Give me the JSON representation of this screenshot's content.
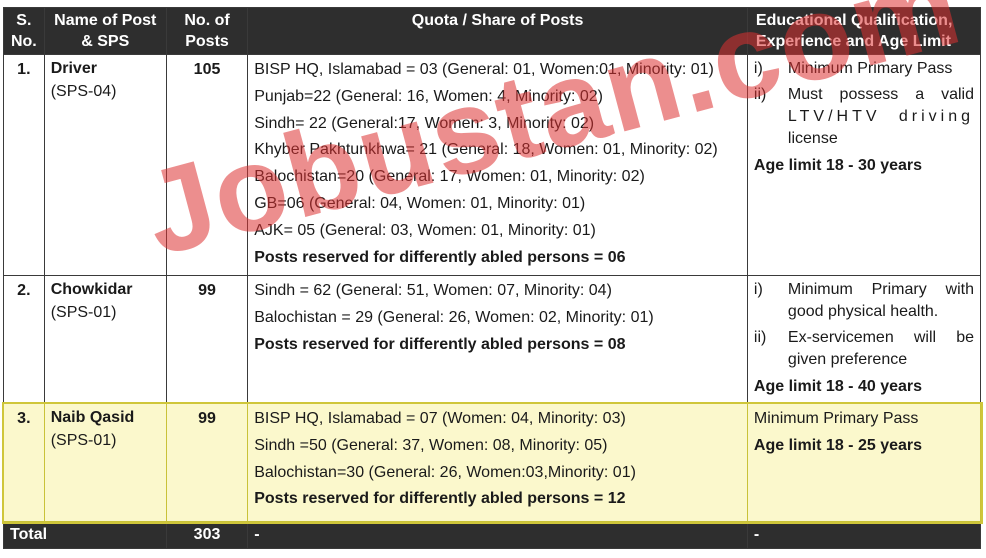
{
  "headers": {
    "sno": "S. No.",
    "name": "Name of Post & SPS",
    "posts": "No. of Posts",
    "quota": "Quota / Share of Posts",
    "qualification": "Educational Qualification, Experience and Age Limit"
  },
  "rows": [
    {
      "sno": "1.",
      "name": "Driver",
      "sps": "(SPS-04)",
      "posts": "105",
      "quota": [
        "BISP HQ, Islamabad = 03 (General: 01, Women:01, Minority: 01)",
        "Punjab=22 (General: 16, Women: 4, Minority: 02)",
        "Sindh= 22 (General:17, Women: 3, Minority: 02)",
        "Khyber Pakhtunkhwa= 21 (General: 18, Women: 01, Minority: 02)",
        "Balochistan=20 (General: 17, Women: 01, Minority: 02)",
        "GB=06 (General: 04, Women: 01, Minority: 01)",
        "AJK= 05 (General: 03, Women: 01, Minority: 01)"
      ],
      "reserved": "Posts reserved for differently abled persons = 06",
      "qualification": [
        {
          "num": "i)",
          "text": "Minimum Primary Pass"
        },
        {
          "num": "ii)",
          "text_a": "Must possess a valid",
          "text_b": "LTV/HTV driving",
          "text_c": "license"
        }
      ],
      "age": "Age limit 18 - 30 years"
    },
    {
      "sno": "2.",
      "name": "Chowkidar",
      "sps": "(SPS-01)",
      "posts": "99",
      "quota": [
        "Sindh = 62 (General: 51, Women: 07, Minority: 04)",
        "Balochistan = 29 (General: 26, Women: 02, Minority: 01)"
      ],
      "reserved": "Posts reserved for differently abled persons = 08",
      "qualification": [
        {
          "num": "i)",
          "text": "Minimum Primary with good physical health."
        },
        {
          "num": "ii)",
          "text": "Ex-servicemen will be given preference"
        }
      ],
      "age": "Age limit 18 - 40 years"
    },
    {
      "sno": "3.",
      "name": "Naib Qasid",
      "sps": "(SPS-01)",
      "posts": "99",
      "quota": [
        "BISP HQ, Islamabad = 07 (Women: 04, Minority: 03)",
        "Sindh =50 (General: 37, Women: 08, Minority: 05)",
        "Balochistan=30 (General: 26, Women:03,Minority: 01)"
      ],
      "reserved": "Posts reserved for differently abled persons = 12",
      "qualification_plain": "Minimum Primary Pass",
      "age": "Age limit 18 - 25 years"
    }
  ],
  "total": {
    "label": "Total",
    "posts": "303",
    "quota": "-",
    "qualification": "-"
  },
  "watermark": "Jobustan.com"
}
